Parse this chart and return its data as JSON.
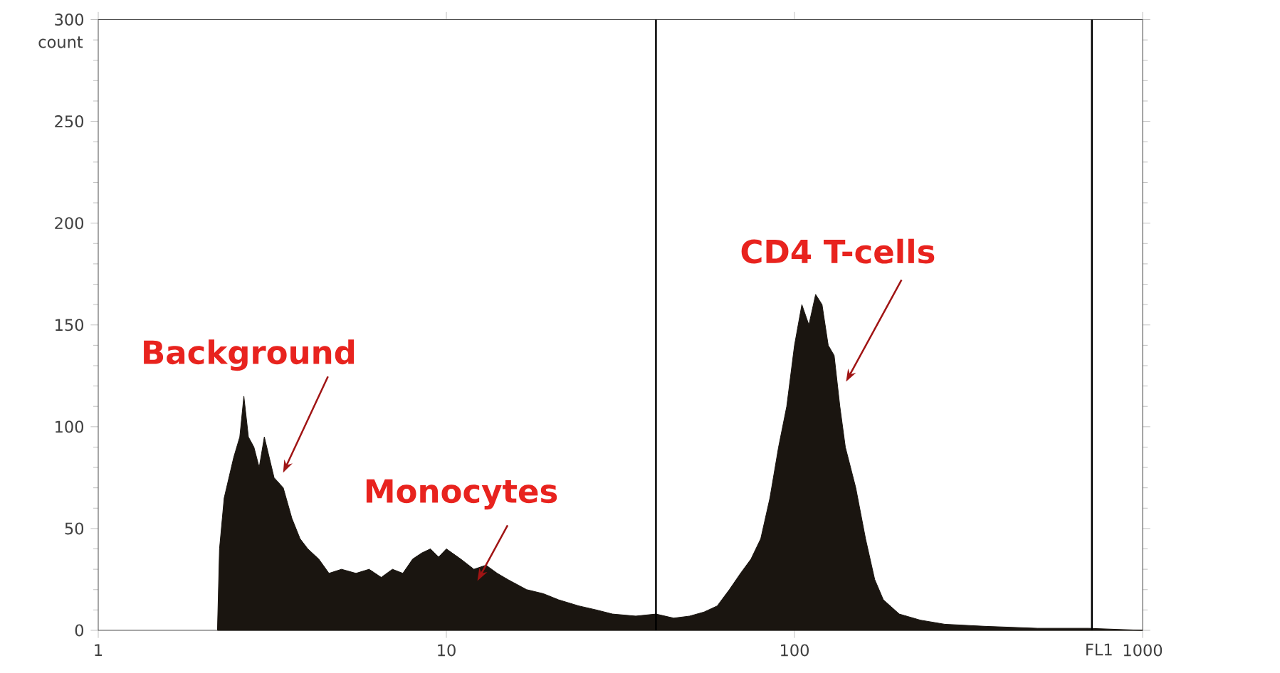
{
  "chart_data": {
    "type": "area",
    "xlabel": "FL1",
    "ylabel": "count",
    "log": "x",
    "color": "#1a1510",
    "x": [
      2.2,
      2.23,
      2.3,
      2.45,
      2.55,
      2.62,
      2.7,
      2.8,
      2.9,
      3.0,
      3.2,
      3.4,
      3.6,
      3.8,
      4.0,
      4.3,
      4.6,
      5,
      5.5,
      6,
      6.5,
      7,
      7.5,
      8,
      8.5,
      9,
      9.5,
      10,
      11,
      12,
      13,
      14,
      15,
      17,
      19,
      21,
      24,
      27,
      30,
      35,
      40,
      45,
      50,
      55,
      60,
      65,
      70,
      75,
      80,
      85,
      90,
      95,
      100,
      105,
      110,
      115,
      120,
      125,
      130,
      135,
      140,
      150,
      160,
      170,
      180,
      200,
      230,
      270,
      350,
      500,
      700,
      1000
    ],
    "values": [
      0,
      40,
      65,
      85,
      95,
      115,
      95,
      90,
      80,
      95,
      75,
      70,
      55,
      45,
      40,
      35,
      28,
      30,
      28,
      30,
      26,
      30,
      28,
      35,
      38,
      40,
      36,
      40,
      35,
      30,
      32,
      28,
      25,
      20,
      18,
      15,
      12,
      10,
      8,
      7,
      8,
      6,
      7,
      9,
      12,
      20,
      28,
      35,
      45,
      65,
      90,
      110,
      140,
      160,
      150,
      165,
      160,
      140,
      135,
      110,
      90,
      70,
      45,
      25,
      15,
      8,
      5,
      3,
      2,
      1,
      1,
      0
    ],
    "xlim": [
      1,
      1000
    ],
    "xticks": [
      1,
      10,
      100,
      1000
    ],
    "ylim": [
      0,
      300
    ],
    "yticks": [
      0,
      50,
      100,
      150,
      200,
      250,
      300
    ],
    "ref_lines": [
      {
        "axis": "x",
        "value": 40,
        "color": "#000000"
      },
      {
        "axis": "x",
        "value": 715,
        "color": "#000000"
      }
    ],
    "annotations": [
      "Background",
      "Monocytes",
      "CD4 T-cells"
    ],
    "grid": false
  }
}
